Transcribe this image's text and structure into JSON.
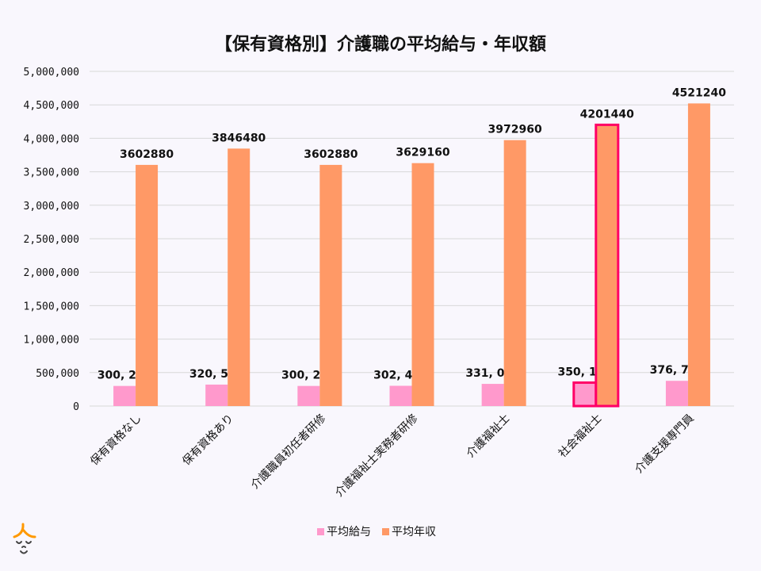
{
  "chart_data": {
    "type": "bar",
    "title": "【保有資格別】介護職の平均給与・年収額",
    "categories": [
      "保有資格なし",
      "保有資格あり",
      "介護職員初任者研修",
      "介護福祉士実務者研修",
      "介護福祉士",
      "社会福祉士",
      "介護支援専門員"
    ],
    "series": [
      {
        "name": "平均給与",
        "color": "#ff99cc",
        "values": [
          300240,
          320540,
          300240,
          302430,
          331080,
          350120,
          376770
        ],
        "labels": [
          "300, 240",
          "320, 540",
          "300, 240",
          "302, 430",
          "331, 080",
          "350, 120",
          "376, 770"
        ]
      },
      {
        "name": "平均年収",
        "color": "#ff9966",
        "values": [
          3602880,
          3846480,
          3602880,
          3629160,
          3972960,
          4201440,
          4521240
        ],
        "labels": [
          "3602880",
          "3846480",
          "3602880",
          "3629160",
          "3972960",
          "4201440",
          "4521240"
        ]
      }
    ],
    "highlight_category": "社会福祉士",
    "highlight_color": "#ff0066",
    "ylim": [
      0,
      5000000
    ],
    "yticks": [
      0,
      500000,
      1000000,
      1500000,
      2000000,
      2500000,
      3000000,
      3500000,
      4000000,
      4500000,
      5000000
    ],
    "ytick_labels": [
      "0",
      "500,000",
      "1,000,000",
      "1,500,000",
      "2,000,000",
      "2,500,000",
      "3,000,000",
      "3,500,000",
      "4,000,000",
      "4,500,000",
      "5,000,000"
    ],
    "grid": true,
    "legend_position": "bottom"
  }
}
